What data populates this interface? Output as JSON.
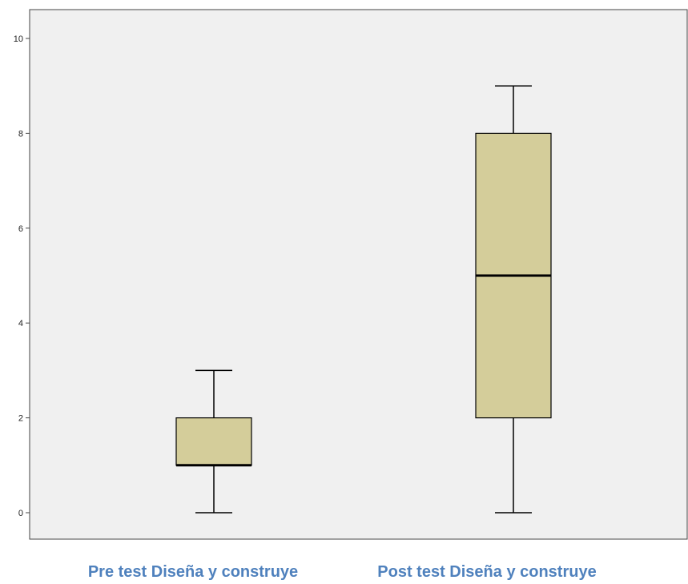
{
  "chart_data": {
    "type": "boxplot",
    "ylim": [
      0,
      10
    ],
    "yticks": [
      0,
      2,
      4,
      6,
      8,
      10
    ],
    "grid": false,
    "categories": [
      "Pre test Diseña y construye",
      "Post test Diseña y construye"
    ],
    "boxes": [
      {
        "category": "Pre test Diseña y construye",
        "min": 0,
        "q1": 1,
        "median": 1,
        "q3": 2,
        "max": 3
      },
      {
        "category": "Post test Diseña y construye",
        "min": 0,
        "q1": 2,
        "median": 5,
        "q3": 8,
        "max": 9
      }
    ],
    "colors": {
      "box_fill": "#d4cd9a",
      "plot_background": "#f0f0f0",
      "category_label": "#4f81bd",
      "stroke": "#000000"
    }
  }
}
